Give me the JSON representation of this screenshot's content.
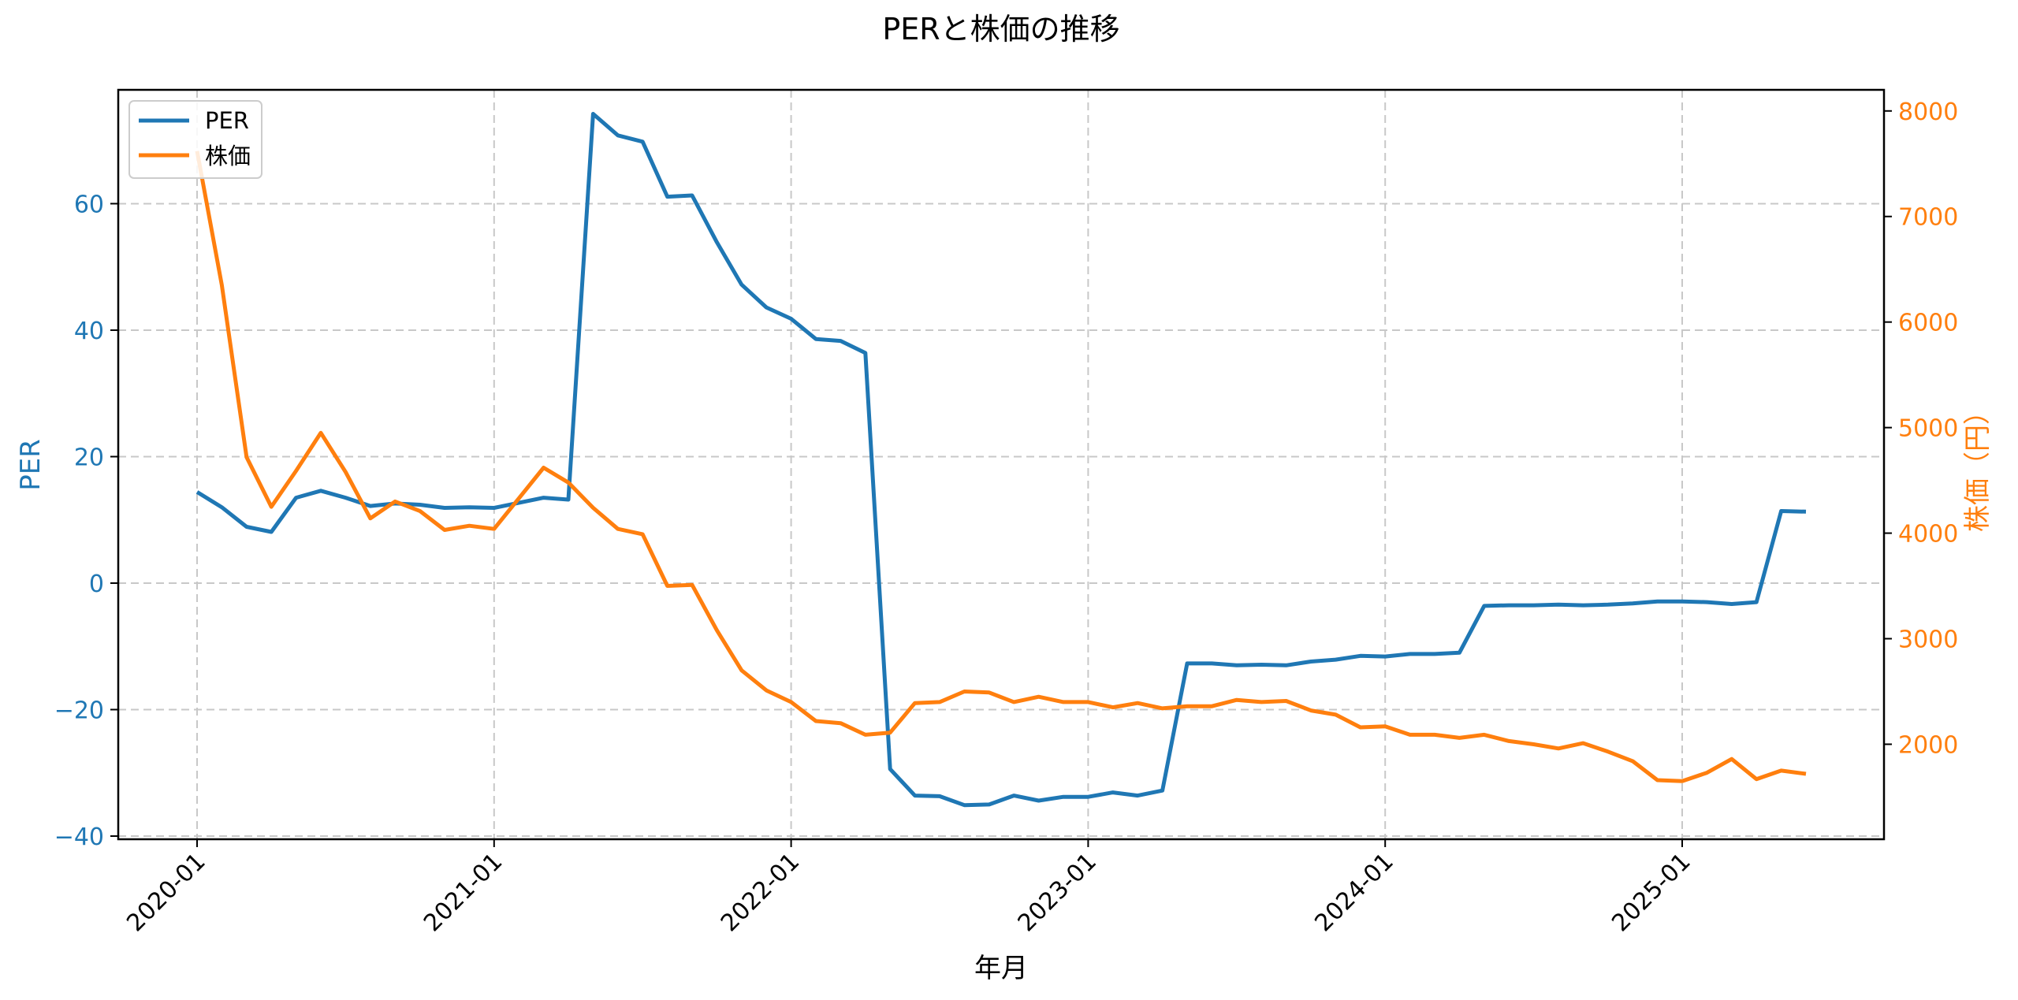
{
  "chart_data": {
    "type": "line",
    "title": "PERと株価の推移",
    "xlabel": "年月",
    "ylabel": "PER",
    "ylabel_right": "株価（円）",
    "x_ticks": [
      "2020-01",
      "2021-01",
      "2022-01",
      "2023-01",
      "2024-01",
      "2025-01"
    ],
    "y_ticks_left": [
      -40,
      -20,
      0,
      20,
      40,
      60
    ],
    "y_ticks_right": [
      2000,
      3000,
      4000,
      5000,
      6000,
      7000,
      8000
    ],
    "ylim_left": [
      -40.5,
      78
    ],
    "ylim_right": [
      1100,
      8200
    ],
    "grid": true,
    "legend_position": "upper left",
    "x": [
      "2020-01",
      "2020-02",
      "2020-03",
      "2020-04",
      "2020-05",
      "2020-06",
      "2020-07",
      "2020-08",
      "2020-09",
      "2020-10",
      "2020-11",
      "2020-12",
      "2021-01",
      "2021-02",
      "2021-03",
      "2021-04",
      "2021-05",
      "2021-06",
      "2021-07",
      "2021-08",
      "2021-09",
      "2021-10",
      "2021-11",
      "2021-12",
      "2022-01",
      "2022-02",
      "2022-03",
      "2022-04",
      "2022-05",
      "2022-06",
      "2022-07",
      "2022-08",
      "2022-09",
      "2022-10",
      "2022-11",
      "2022-12",
      "2023-01",
      "2023-02",
      "2023-03",
      "2023-04",
      "2023-05",
      "2023-06",
      "2023-07",
      "2023-08",
      "2023-09",
      "2023-10",
      "2023-11",
      "2023-12",
      "2024-01",
      "2024-02",
      "2024-03",
      "2024-04",
      "2024-05",
      "2024-06",
      "2024-07",
      "2024-08",
      "2024-09",
      "2024-10",
      "2024-11",
      "2024-12",
      "2025-01",
      "2025-02",
      "2025-03",
      "2025-04",
      "2025-05",
      "2025-06"
    ],
    "series": [
      {
        "name": "PER",
        "axis": "left",
        "color": "#1f77b4",
        "values": [
          14.4,
          12.0,
          8.9,
          8.1,
          13.5,
          14.6,
          13.5,
          12.2,
          12.6,
          12.4,
          11.9,
          12.0,
          11.9,
          12.7,
          13.5,
          13.2,
          74.2,
          70.8,
          69.8,
          61.1,
          61.3,
          53.9,
          47.2,
          43.6,
          41.8,
          38.6,
          38.3,
          36.4,
          -29.4,
          -33.6,
          -33.7,
          -35.1,
          -35.0,
          -33.6,
          -34.4,
          -33.8,
          -33.8,
          -33.1,
          -33.6,
          -32.8,
          -12.7,
          -12.7,
          -13.0,
          -12.9,
          -13.0,
          -12.4,
          -12.1,
          -11.5,
          -11.6,
          -11.2,
          -11.2,
          -11.0,
          -3.6,
          -3.5,
          -3.5,
          -3.4,
          -3.5,
          -3.4,
          -3.2,
          -2.9,
          -2.9,
          -3.0,
          -3.3,
          -3.0,
          11.4,
          11.3
        ]
      },
      {
        "name": "株価",
        "axis": "right",
        "color": "#ff7f0e",
        "values": [
          7620,
          6350,
          4720,
          4250,
          4590,
          4950,
          4580,
          4140,
          4300,
          4210,
          4030,
          4070,
          4040,
          4330,
          4620,
          4480,
          4240,
          4040,
          3990,
          3500,
          3510,
          3080,
          2700,
          2510,
          2400,
          2220,
          2200,
          2090,
          2110,
          2390,
          2400,
          2500,
          2490,
          2400,
          2450,
          2400,
          2400,
          2350,
          2390,
          2340,
          2360,
          2360,
          2420,
          2400,
          2410,
          2320,
          2280,
          2160,
          2170,
          2090,
          2090,
          2060,
          2090,
          2030,
          2000,
          1960,
          2010,
          1930,
          1840,
          1660,
          1650,
          1730,
          1860,
          1670,
          1750,
          1720
        ]
      }
    ]
  },
  "legend": {
    "items": [
      {
        "label": "PER",
        "color": "#1f77b4"
      },
      {
        "label": "株価",
        "color": "#ff7f0e"
      }
    ]
  }
}
